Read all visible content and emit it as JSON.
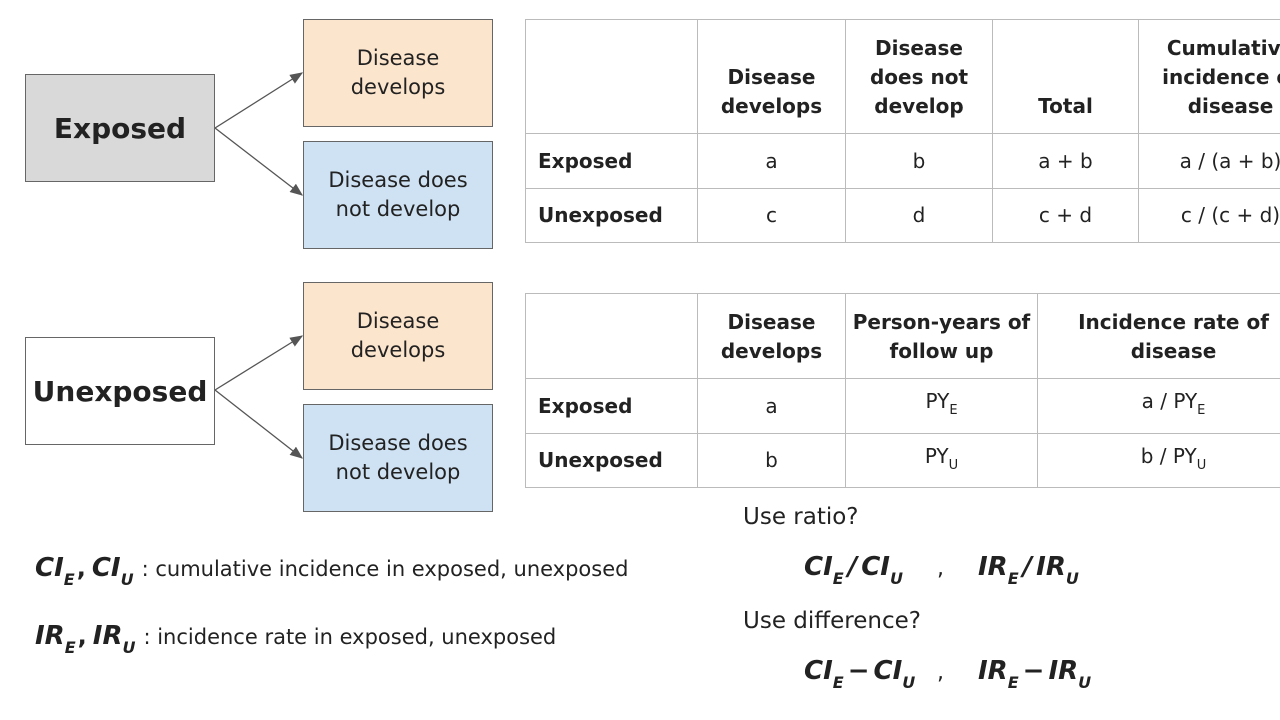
{
  "trees": [
    {
      "root": "Exposed",
      "branches": [
        "Disease develops",
        "Disease does not develop"
      ]
    },
    {
      "root": "Unexposed",
      "branches": [
        "Disease develops",
        "Disease does not develop"
      ]
    }
  ],
  "cumulative_table": {
    "columns": [
      "Disease develops",
      "Disease does not develop",
      "Total",
      "Cumulative incidence of disease"
    ],
    "rows": [
      {
        "label": "Exposed",
        "cells": [
          "a",
          "b",
          "a + b",
          "a / (a + b)"
        ]
      },
      {
        "label": "Unexposed",
        "cells": [
          "c",
          "d",
          "c + d",
          "c / (c + d)"
        ]
      }
    ]
  },
  "rate_table": {
    "columns": [
      "Disease develops",
      "Person-years of follow up",
      "Incidence rate of disease"
    ],
    "rows": [
      {
        "label": "Exposed",
        "cells": [
          "a",
          {
            "t": "PY",
            "sub": "E"
          },
          {
            "t": "a / PY",
            "sub": "E"
          }
        ]
      },
      {
        "label": "Unexposed",
        "cells": [
          "b",
          {
            "t": "PY",
            "sub": "U"
          },
          {
            "t": "b / PY",
            "sub": "U"
          }
        ]
      }
    ]
  },
  "definitions": [
    {
      "terms": [
        {
          "t": "CI",
          "sub": "E"
        },
        {
          "t": "CI",
          "sub": "U"
        }
      ],
      "separator": ",",
      "text": ": cumulative incidence in exposed, unexposed"
    },
    {
      "terms": [
        {
          "t": "IR",
          "sub": "E"
        },
        {
          "t": "IR",
          "sub": "U"
        }
      ],
      "separator": ",",
      "text": ": incidence rate in exposed, unexposed"
    }
  ],
  "measures": [
    {
      "question": "Use ratio?",
      "separator": ",",
      "formulas": [
        [
          {
            "t": "CI",
            "sub": "E"
          },
          {
            "t": "/"
          },
          {
            "t": "CI",
            "sub": "U"
          }
        ],
        [
          {
            "t": "IR",
            "sub": "E"
          },
          {
            "t": "/"
          },
          {
            "t": "IR",
            "sub": "U"
          }
        ]
      ]
    },
    {
      "question": "Use difference?",
      "separator": ",",
      "formulas": [
        [
          {
            "t": "CI",
            "sub": "E"
          },
          {
            "t": "−"
          },
          {
            "t": "CI",
            "sub": "U"
          }
        ],
        [
          {
            "t": "IR",
            "sub": "E"
          },
          {
            "t": "−"
          },
          {
            "t": "IR",
            "sub": "U"
          }
        ]
      ]
    }
  ]
}
